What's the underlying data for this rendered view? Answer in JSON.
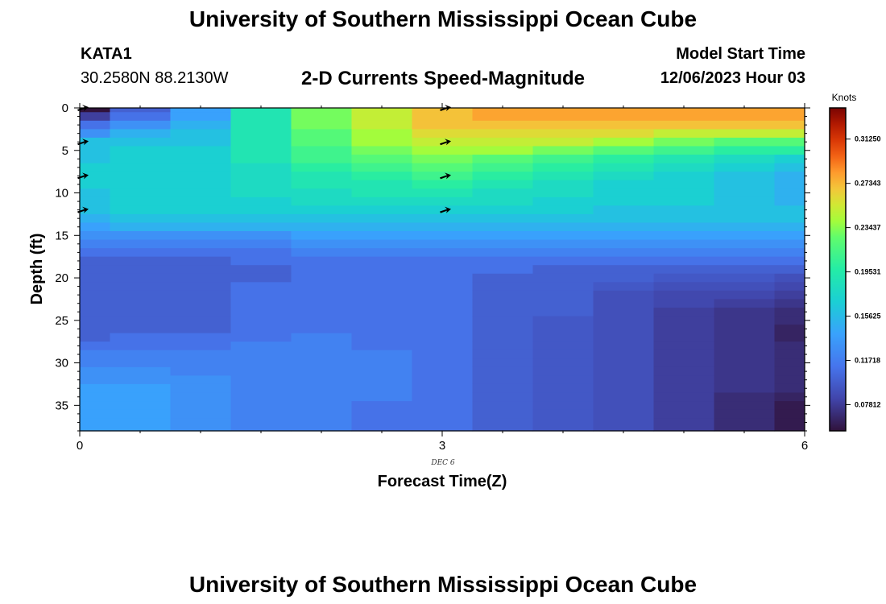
{
  "header": {
    "title": "University of Southern Mississippi Ocean Cube",
    "station": "KATA1",
    "coords": "30.2580N  88.2130W",
    "model_label": "Model Start Time",
    "model_value": "12/06/2023 Hour 03"
  },
  "footer": {
    "title": "University of Southern Mississippi Ocean Cube"
  },
  "chart_data": {
    "type": "heatmap",
    "title": "2-D Currents Speed-Magnitude",
    "xlabel": "Forecast Time(Z)",
    "ylabel": "Depth (ft)",
    "xlim": [
      0,
      6
    ],
    "ylim": [
      38,
      0
    ],
    "x_ticks": [
      "0",
      "3",
      "6"
    ],
    "x_sublabel": "DEC 6",
    "y_ticks": [
      "0",
      "5",
      "10",
      "15",
      "20",
      "25",
      "30",
      "35"
    ],
    "colorbar": {
      "label": "Knots",
      "ticks": [
        "0.31250",
        "0.27343",
        "0.23437",
        "0.19531",
        "0.15625",
        "0.11718",
        "0.07812"
      ],
      "range": [
        0.055,
        0.34
      ]
    },
    "x_columns": [
      0,
      0.5,
      1,
      1.5,
      2,
      2.5,
      3,
      3.5,
      4,
      4.5,
      5,
      5.5,
      6
    ],
    "depth_rows": [
      0,
      1,
      2,
      3,
      4,
      5,
      6,
      7,
      8,
      9,
      10,
      11,
      12,
      13,
      14,
      15,
      16,
      17,
      18,
      19,
      20,
      21,
      22,
      23,
      24,
      25,
      26,
      27,
      28,
      29,
      30,
      31,
      32,
      33,
      34,
      35,
      36,
      37
    ],
    "speed_profiles": [
      {
        "x": 0,
        "knots": [
          0.05,
          0.08,
          0.11,
          0.13,
          0.16,
          0.16,
          0.16,
          0.17,
          0.17,
          0.17,
          0.16,
          0.16,
          0.16,
          0.15,
          0.14,
          0.13,
          0.12,
          0.11,
          0.1,
          0.1,
          0.1,
          0.1,
          0.1,
          0.1,
          0.1,
          0.1,
          0.1,
          0.1,
          0.11,
          0.12,
          0.12,
          0.13,
          0.13,
          0.14,
          0.14,
          0.14,
          0.14,
          0.14
        ]
      },
      {
        "x": 0.5,
        "knots": [
          0.1,
          0.11,
          0.13,
          0.15,
          0.16,
          0.17,
          0.17,
          0.17,
          0.17,
          0.17,
          0.17,
          0.17,
          0.17,
          0.16,
          0.15,
          0.13,
          0.12,
          0.11,
          0.1,
          0.1,
          0.1,
          0.1,
          0.1,
          0.1,
          0.1,
          0.1,
          0.1,
          0.11,
          0.11,
          0.12,
          0.12,
          0.13,
          0.13,
          0.14,
          0.14,
          0.14,
          0.14,
          0.14
        ]
      },
      {
        "x": 1,
        "knots": [
          0.14,
          0.14,
          0.15,
          0.16,
          0.16,
          0.17,
          0.17,
          0.17,
          0.17,
          0.17,
          0.17,
          0.17,
          0.17,
          0.16,
          0.15,
          0.13,
          0.12,
          0.11,
          0.1,
          0.1,
          0.1,
          0.1,
          0.1,
          0.1,
          0.1,
          0.1,
          0.1,
          0.11,
          0.11,
          0.12,
          0.12,
          0.12,
          0.13,
          0.13,
          0.13,
          0.13,
          0.13,
          0.13
        ]
      },
      {
        "x": 1.5,
        "knots": [
          0.19,
          0.19,
          0.19,
          0.19,
          0.19,
          0.19,
          0.19,
          0.18,
          0.18,
          0.18,
          0.18,
          0.17,
          0.17,
          0.16,
          0.15,
          0.13,
          0.12,
          0.11,
          0.11,
          0.1,
          0.1,
          0.11,
          0.11,
          0.11,
          0.11,
          0.11,
          0.11,
          0.11,
          0.12,
          0.12,
          0.12,
          0.12,
          0.12,
          0.12,
          0.12,
          0.12,
          0.12,
          0.12
        ]
      },
      {
        "x": 2,
        "knots": [
          0.23,
          0.23,
          0.23,
          0.22,
          0.22,
          0.21,
          0.21,
          0.2,
          0.19,
          0.19,
          0.18,
          0.18,
          0.17,
          0.16,
          0.15,
          0.14,
          0.13,
          0.12,
          0.11,
          0.11,
          0.11,
          0.11,
          0.11,
          0.11,
          0.11,
          0.11,
          0.11,
          0.12,
          0.12,
          0.12,
          0.12,
          0.12,
          0.12,
          0.12,
          0.12,
          0.12,
          0.12,
          0.12
        ]
      },
      {
        "x": 2.5,
        "knots": [
          0.25,
          0.25,
          0.25,
          0.24,
          0.24,
          0.23,
          0.22,
          0.21,
          0.2,
          0.19,
          0.19,
          0.18,
          0.17,
          0.16,
          0.15,
          0.14,
          0.13,
          0.12,
          0.11,
          0.11,
          0.11,
          0.11,
          0.11,
          0.11,
          0.11,
          0.11,
          0.11,
          0.11,
          0.11,
          0.12,
          0.12,
          0.12,
          0.12,
          0.12,
          0.12,
          0.11,
          0.11,
          0.11
        ]
      },
      {
        "x": 3,
        "knots": [
          0.27,
          0.27,
          0.27,
          0.26,
          0.25,
          0.24,
          0.23,
          0.22,
          0.21,
          0.2,
          0.19,
          0.18,
          0.17,
          0.16,
          0.15,
          0.14,
          0.13,
          0.12,
          0.11,
          0.11,
          0.11,
          0.11,
          0.11,
          0.11,
          0.11,
          0.11,
          0.11,
          0.11,
          0.11,
          0.11,
          0.11,
          0.11,
          0.11,
          0.11,
          0.11,
          0.11,
          0.11,
          0.11
        ]
      },
      {
        "x": 3.5,
        "knots": [
          0.28,
          0.28,
          0.27,
          0.26,
          0.25,
          0.24,
          0.22,
          0.21,
          0.2,
          0.19,
          0.18,
          0.18,
          0.17,
          0.16,
          0.15,
          0.14,
          0.13,
          0.12,
          0.11,
          0.11,
          0.1,
          0.1,
          0.1,
          0.1,
          0.1,
          0.1,
          0.1,
          0.1,
          0.1,
          0.1,
          0.1,
          0.1,
          0.1,
          0.1,
          0.1,
          0.1,
          0.1,
          0.1
        ]
      },
      {
        "x": 4,
        "knots": [
          0.28,
          0.28,
          0.27,
          0.26,
          0.25,
          0.23,
          0.21,
          0.2,
          0.19,
          0.18,
          0.18,
          0.17,
          0.17,
          0.16,
          0.15,
          0.14,
          0.13,
          0.12,
          0.11,
          0.1,
          0.1,
          0.1,
          0.1,
          0.1,
          0.1,
          0.095,
          0.095,
          0.095,
          0.095,
          0.095,
          0.095,
          0.095,
          0.095,
          0.095,
          0.095,
          0.095,
          0.095,
          0.095
        ]
      },
      {
        "x": 4.5,
        "knots": [
          0.28,
          0.28,
          0.27,
          0.26,
          0.24,
          0.22,
          0.2,
          0.19,
          0.18,
          0.17,
          0.17,
          0.17,
          0.16,
          0.16,
          0.15,
          0.14,
          0.13,
          0.12,
          0.11,
          0.1,
          0.1,
          0.095,
          0.09,
          0.09,
          0.09,
          0.09,
          0.09,
          0.09,
          0.09,
          0.09,
          0.09,
          0.09,
          0.09,
          0.09,
          0.09,
          0.09,
          0.09,
          0.09
        ]
      },
      {
        "x": 5,
        "knots": [
          0.28,
          0.28,
          0.27,
          0.25,
          0.23,
          0.21,
          0.19,
          0.18,
          0.17,
          0.17,
          0.17,
          0.17,
          0.16,
          0.16,
          0.15,
          0.14,
          0.13,
          0.12,
          0.11,
          0.1,
          0.095,
          0.09,
          0.085,
          0.085,
          0.08,
          0.08,
          0.08,
          0.08,
          0.08,
          0.08,
          0.08,
          0.08,
          0.08,
          0.08,
          0.08,
          0.08,
          0.08,
          0.08
        ]
      },
      {
        "x": 5.5,
        "knots": [
          0.28,
          0.28,
          0.27,
          0.25,
          0.22,
          0.2,
          0.18,
          0.17,
          0.16,
          0.16,
          0.16,
          0.16,
          0.16,
          0.16,
          0.15,
          0.14,
          0.13,
          0.12,
          0.11,
          0.1,
          0.095,
          0.09,
          0.085,
          0.08,
          0.075,
          0.075,
          0.075,
          0.075,
          0.075,
          0.075,
          0.075,
          0.075,
          0.075,
          0.075,
          0.07,
          0.07,
          0.07,
          0.07
        ]
      },
      {
        "x": 6,
        "knots": [
          0.28,
          0.28,
          0.27,
          0.25,
          0.22,
          0.2,
          0.17,
          0.16,
          0.15,
          0.15,
          0.15,
          0.15,
          0.16,
          0.16,
          0.15,
          0.14,
          0.13,
          0.12,
          0.11,
          0.1,
          0.09,
          0.085,
          0.08,
          0.075,
          0.07,
          0.07,
          0.065,
          0.065,
          0.07,
          0.07,
          0.07,
          0.07,
          0.07,
          0.07,
          0.065,
          0.06,
          0.06,
          0.06
        ]
      }
    ],
    "vectors": [
      {
        "x": 0,
        "depth": 0
      },
      {
        "x": 0,
        "depth": 4
      },
      {
        "x": 0,
        "depth": 8
      },
      {
        "x": 0,
        "depth": 12
      },
      {
        "x": 3,
        "depth": 0
      },
      {
        "x": 3,
        "depth": 4
      },
      {
        "x": 3,
        "depth": 8
      },
      {
        "x": 3,
        "depth": 12
      }
    ]
  }
}
